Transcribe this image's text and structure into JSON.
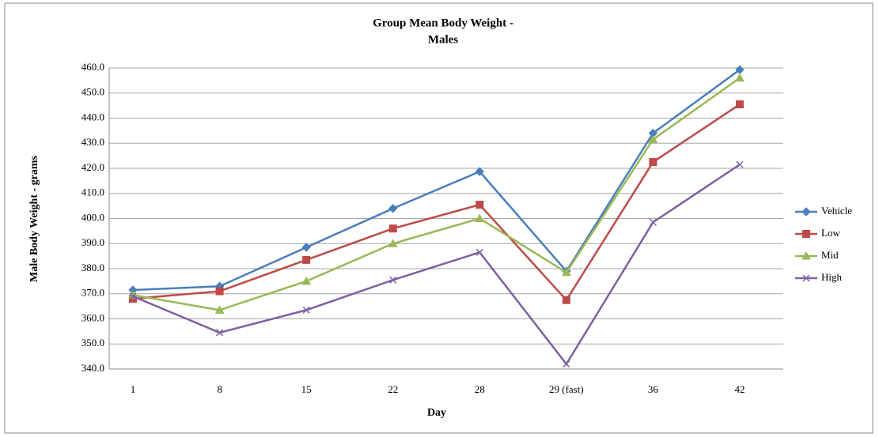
{
  "chart_data": {
    "type": "line",
    "title": [
      "Group Mean Body Weight  -",
      "Males"
    ],
    "x_label": "Day",
    "y_label": "Male Body Weight - grams",
    "categories": [
      "1",
      "8",
      "15",
      "22",
      "28",
      "29 (fast)",
      "36",
      "42"
    ],
    "series": [
      {
        "name": "Vehicle",
        "color": "#4a7ebb",
        "marker": "diamond",
        "values": [
          371.5,
          373,
          388.5,
          404,
          418.7,
          379,
          434,
          459.3
        ]
      },
      {
        "name": "Low",
        "color": "#be4b48",
        "marker": "square",
        "values": [
          368,
          371,
          383.5,
          396,
          405.5,
          367.5,
          422.5,
          445.5
        ]
      },
      {
        "name": "Mid",
        "color": "#98b954",
        "marker": "triangle",
        "values": [
          369.5,
          363.5,
          375,
          390,
          400,
          378.5,
          431.5,
          456
        ]
      },
      {
        "name": "High",
        "color": "#7d60a0",
        "marker": "x",
        "values": [
          369,
          354.5,
          363.5,
          375.5,
          386.5,
          342,
          398.5,
          421.5
        ]
      }
    ],
    "ylim": [
      340,
      460
    ],
    "yticks": [
      {
        "value": 340,
        "label": "340.0"
      },
      {
        "value": 350,
        "label": "350.0"
      },
      {
        "value": 360,
        "label": "360.0"
      },
      {
        "value": 370,
        "label": "370.0"
      },
      {
        "value": 380,
        "label": "380.0"
      },
      {
        "value": 390,
        "label": "390.0"
      },
      {
        "value": 400,
        "label": "400.0"
      },
      {
        "value": 410,
        "label": "410.0"
      },
      {
        "value": 420,
        "label": "420.0"
      },
      {
        "value": 430,
        "label": "430.0"
      },
      {
        "value": 440,
        "label": "440.0"
      },
      {
        "value": 450,
        "label": "450.0"
      },
      {
        "value": 460,
        "label": "460.0"
      }
    ],
    "grid": true,
    "legend": "right"
  }
}
